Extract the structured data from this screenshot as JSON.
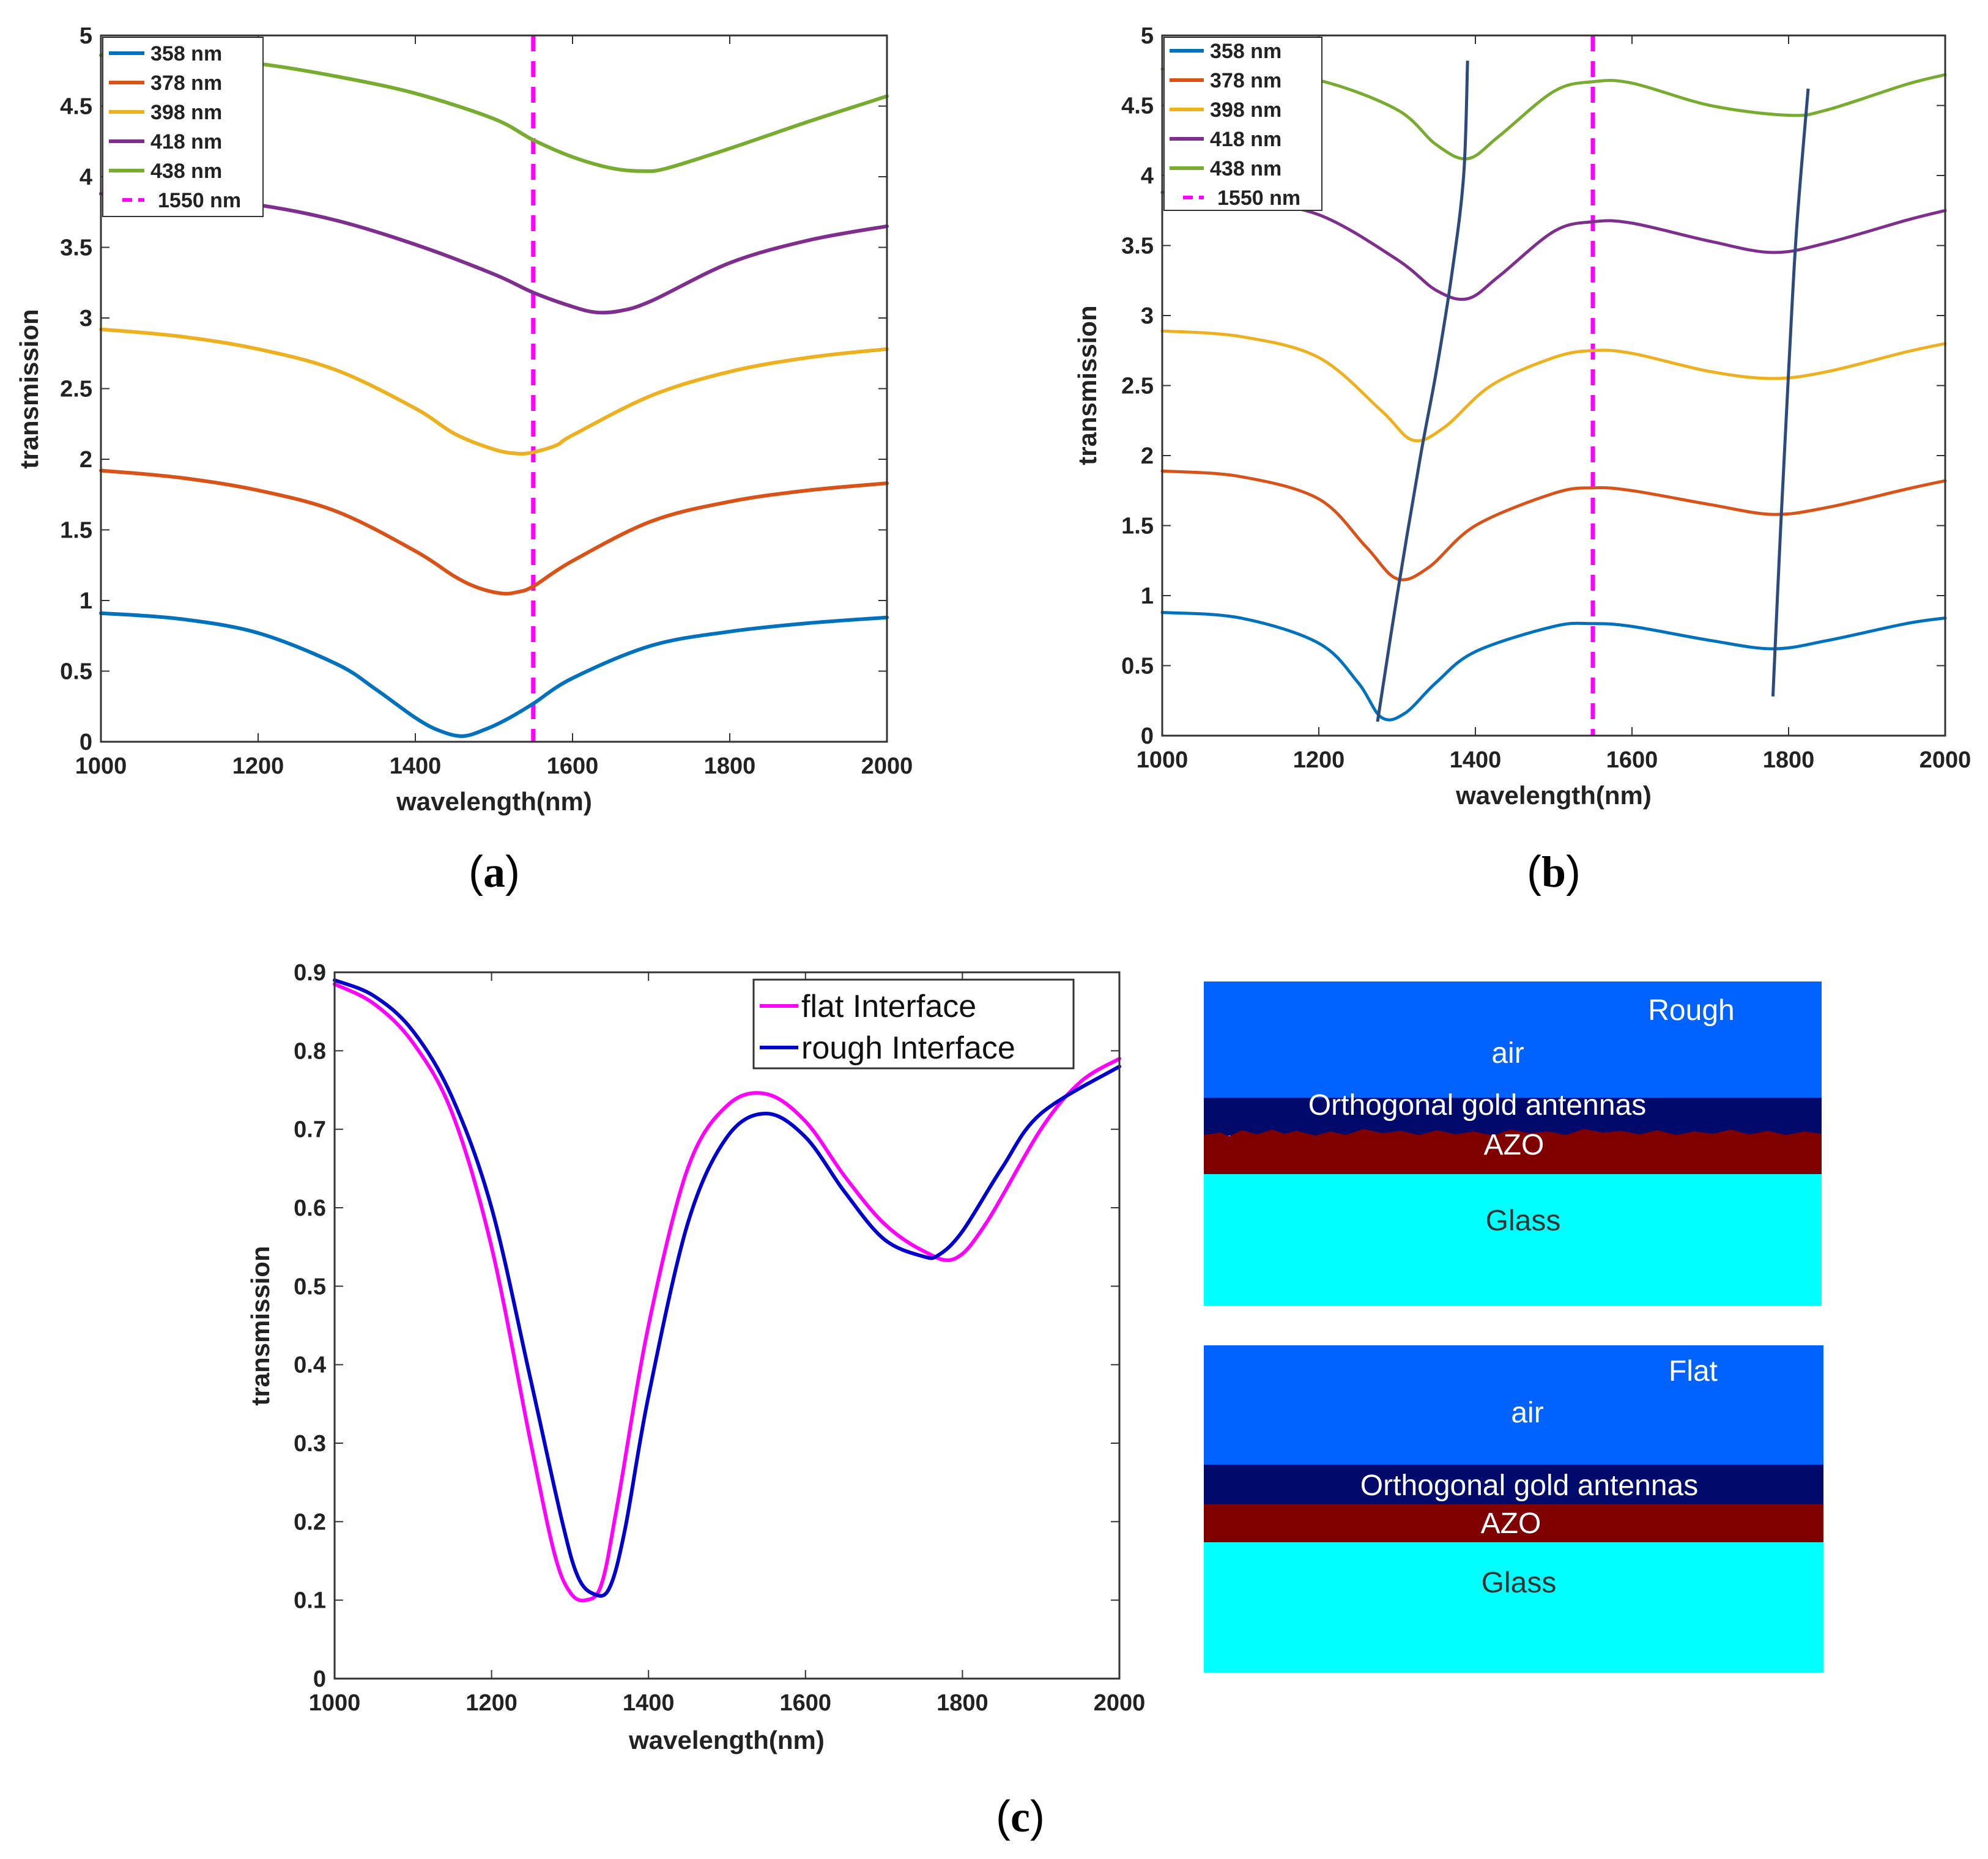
{
  "chart_data": [
    {
      "id": "a",
      "type": "line",
      "caption": "a",
      "xlabel": "wavelength(nm)",
      "ylabel": "transmission",
      "xlim": [
        1000,
        2000
      ],
      "ylim": [
        0,
        5
      ],
      "xticks": [
        "1000",
        "1200",
        "1400",
        "1600",
        "1800",
        "2000"
      ],
      "yticks": [
        "0",
        "0.5",
        "1",
        "1.5",
        "2",
        "2.5",
        "3",
        "3.5",
        "4",
        "4.5",
        "5"
      ],
      "legend_position": "top-left",
      "vline": {
        "name": "1550 nm",
        "x": 1550,
        "color": "#ff00ff"
      },
      "series": [
        {
          "name": "358 nm",
          "color": "#0072bd",
          "x": [
            1000,
            1100,
            1200,
            1300,
            1350,
            1400,
            1430,
            1460,
            1490,
            1520,
            1550,
            1600,
            1700,
            1800,
            1900,
            2000
          ],
          "y": [
            0.91,
            0.87,
            0.77,
            0.55,
            0.37,
            0.17,
            0.08,
            0.04,
            0.09,
            0.17,
            0.27,
            0.45,
            0.68,
            0.78,
            0.84,
            0.88
          ]
        },
        {
          "name": "378 nm",
          "color": "#d95319",
          "x": [
            1000,
            1100,
            1200,
            1300,
            1400,
            1450,
            1480,
            1510,
            1530,
            1550,
            1600,
            1700,
            1800,
            1900,
            2000
          ],
          "y": [
            1.92,
            1.87,
            1.78,
            1.63,
            1.35,
            1.17,
            1.09,
            1.05,
            1.06,
            1.1,
            1.28,
            1.56,
            1.7,
            1.78,
            1.83
          ]
        },
        {
          "name": "398 nm",
          "color": "#edb120",
          "x": [
            1000,
            1100,
            1200,
            1300,
            1400,
            1450,
            1500,
            1530,
            1550,
            1580,
            1600,
            1700,
            1800,
            1900,
            2000
          ],
          "y": [
            2.92,
            2.87,
            2.78,
            2.63,
            2.36,
            2.18,
            2.07,
            2.04,
            2.05,
            2.1,
            2.17,
            2.45,
            2.62,
            2.72,
            2.78
          ]
        },
        {
          "name": "418 nm",
          "color": "#7e2f8e",
          "x": [
            1000,
            1100,
            1200,
            1300,
            1400,
            1500,
            1550,
            1600,
            1630,
            1660,
            1700,
            1800,
            1900,
            2000
          ],
          "y": [
            3.88,
            3.85,
            3.8,
            3.69,
            3.52,
            3.31,
            3.18,
            3.08,
            3.04,
            3.05,
            3.12,
            3.39,
            3.55,
            3.65
          ]
        },
        {
          "name": "438 nm",
          "color": "#77ac30",
          "x": [
            1000,
            1100,
            1200,
            1300,
            1400,
            1500,
            1550,
            1600,
            1650,
            1690,
            1720,
            1800,
            1900,
            2000
          ],
          "y": [
            4.86,
            4.84,
            4.8,
            4.71,
            4.59,
            4.41,
            4.26,
            4.14,
            4.06,
            4.04,
            4.06,
            4.2,
            4.39,
            4.57
          ]
        }
      ]
    },
    {
      "id": "b",
      "type": "line",
      "caption": "b",
      "xlabel": "wavelength(nm)",
      "ylabel": "transmission",
      "xlim": [
        1000,
        2000
      ],
      "ylim": [
        0,
        5
      ],
      "xticks": [
        "1000",
        "1200",
        "1400",
        "1600",
        "1800",
        "2000"
      ],
      "yticks": [
        "0",
        "0.5",
        "1",
        "1.5",
        "2",
        "2.5",
        "3",
        "3.5",
        "4",
        "4.5",
        "5"
      ],
      "legend_position": "top-left",
      "vline": {
        "name": "1550 nm",
        "x": 1550,
        "color": "#ff00ff"
      },
      "series": [
        {
          "name": "358 nm",
          "color": "#0072bd",
          "x": [
            1000,
            1100,
            1200,
            1250,
            1280,
            1310,
            1350,
            1400,
            1500,
            1550,
            1600,
            1700,
            1780,
            1850,
            1950,
            2000
          ],
          "y": [
            0.88,
            0.84,
            0.66,
            0.38,
            0.13,
            0.16,
            0.38,
            0.6,
            0.78,
            0.8,
            0.78,
            0.68,
            0.62,
            0.68,
            0.8,
            0.84
          ]
        },
        {
          "name": "378 nm",
          "color": "#d95319",
          "x": [
            1000,
            1100,
            1200,
            1260,
            1300,
            1340,
            1400,
            1500,
            1550,
            1600,
            1700,
            1780,
            1850,
            1950,
            2000
          ],
          "y": [
            1.89,
            1.85,
            1.69,
            1.35,
            1.12,
            1.2,
            1.5,
            1.73,
            1.77,
            1.75,
            1.65,
            1.58,
            1.63,
            1.76,
            1.82
          ]
        },
        {
          "name": "398 nm",
          "color": "#edb120",
          "x": [
            1000,
            1100,
            1200,
            1280,
            1320,
            1360,
            1420,
            1500,
            1550,
            1600,
            1700,
            1780,
            1850,
            1950,
            2000
          ],
          "y": [
            2.89,
            2.85,
            2.7,
            2.32,
            2.11,
            2.2,
            2.5,
            2.7,
            2.75,
            2.73,
            2.6,
            2.55,
            2.6,
            2.74,
            2.8
          ]
        },
        {
          "name": "418 nm",
          "color": "#7e2f8e",
          "x": [
            1000,
            1100,
            1200,
            1300,
            1350,
            1390,
            1430,
            1500,
            1550,
            1600,
            1700,
            1780,
            1850,
            1950,
            2000
          ],
          "y": [
            3.88,
            3.82,
            3.72,
            3.4,
            3.18,
            3.12,
            3.28,
            3.6,
            3.67,
            3.66,
            3.53,
            3.45,
            3.52,
            3.68,
            3.75
          ]
        },
        {
          "name": "438 nm",
          "color": "#77ac30",
          "x": [
            1000,
            1100,
            1200,
            1300,
            1350,
            1390,
            1430,
            1500,
            1550,
            1600,
            1700,
            1800,
            1850,
            1950,
            2000
          ],
          "y": [
            4.76,
            4.74,
            4.68,
            4.47,
            4.22,
            4.12,
            4.28,
            4.6,
            4.67,
            4.66,
            4.5,
            4.43,
            4.47,
            4.65,
            4.72
          ]
        }
      ],
      "trend_lines": [
        {
          "name": "trend-line-1",
          "color": "#2c4a7c",
          "x": [
            1275,
            1300,
            1330,
            1350,
            1370,
            1385,
            1390
          ],
          "y": [
            0.1,
            1.0,
            2.0,
            2.6,
            3.3,
            4.0,
            4.82
          ]
        },
        {
          "name": "trend-line-2",
          "color": "#2c4a7c",
          "x": [
            1780,
            1790,
            1800,
            1810,
            1825
          ],
          "y": [
            0.28,
            1.5,
            2.6,
            3.6,
            4.62
          ]
        }
      ]
    },
    {
      "id": "c",
      "type": "line",
      "caption": "c",
      "xlabel": "wavelength(nm)",
      "ylabel": "transmission",
      "xlim": [
        1000,
        2000
      ],
      "ylim": [
        0,
        0.9
      ],
      "xticks": [
        "1000",
        "1200",
        "1400",
        "1600",
        "1800",
        "2000"
      ],
      "yticks": [
        "0",
        "0.1",
        "0.2",
        "0.3",
        "0.4",
        "0.5",
        "0.6",
        "0.7",
        "0.8",
        "0.9"
      ],
      "legend_position": "top-right",
      "series": [
        {
          "name": "flat Interface",
          "color": "#ff00ff",
          "x": [
            1000,
            1050,
            1100,
            1150,
            1200,
            1250,
            1280,
            1300,
            1320,
            1340,
            1360,
            1400,
            1450,
            1500,
            1550,
            1600,
            1650,
            1700,
            1750,
            1790,
            1830,
            1900,
            1950,
            2000
          ],
          "y": [
            0.885,
            0.86,
            0.81,
            0.72,
            0.55,
            0.3,
            0.16,
            0.11,
            0.1,
            0.12,
            0.22,
            0.45,
            0.65,
            0.73,
            0.745,
            0.71,
            0.64,
            0.58,
            0.545,
            0.535,
            0.58,
            0.7,
            0.76,
            0.79
          ]
        },
        {
          "name": "rough Interface",
          "color": "#0000cc",
          "x": [
            1000,
            1050,
            1100,
            1150,
            1200,
            1250,
            1290,
            1310,
            1330,
            1350,
            1370,
            1400,
            1450,
            1500,
            1550,
            1600,
            1650,
            1700,
            1750,
            1770,
            1800,
            1850,
            1900,
            2000
          ],
          "y": [
            0.89,
            0.87,
            0.825,
            0.74,
            0.6,
            0.38,
            0.2,
            0.13,
            0.108,
            0.115,
            0.19,
            0.36,
            0.58,
            0.69,
            0.72,
            0.69,
            0.62,
            0.56,
            0.538,
            0.54,
            0.57,
            0.65,
            0.72,
            0.78
          ]
        }
      ]
    }
  ],
  "diagrams": {
    "rough": {
      "label": "Rough",
      "air": "air",
      "antennas": "Orthogonal gold antennas",
      "azo": "AZO",
      "glass": "Glass"
    },
    "flat": {
      "label": "Flat",
      "air": "air",
      "antennas": "Orthogonal gold antennas",
      "azo": "AZO",
      "glass": "Glass"
    },
    "colors": {
      "air": "#0062ff",
      "antennas": "#000a6b",
      "azo": "#800000",
      "glass": "#00ffff"
    }
  }
}
